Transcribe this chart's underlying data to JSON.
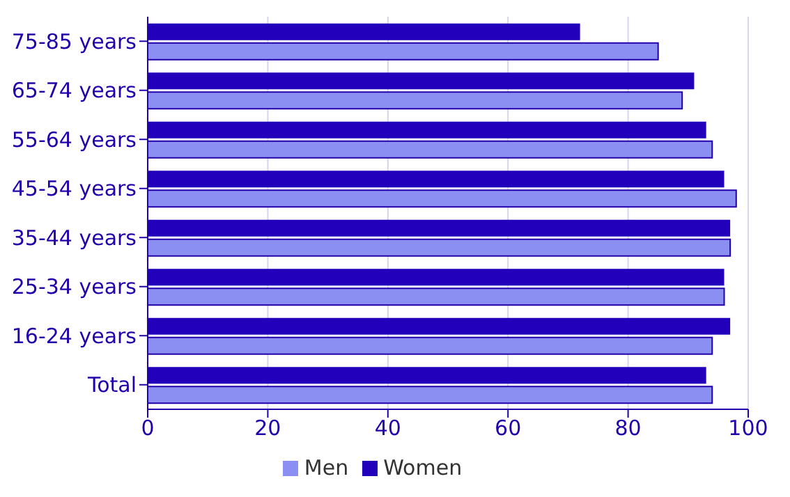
{
  "chart_data": {
    "type": "bar",
    "orientation": "horizontal",
    "categories": [
      "75-85 years",
      "65-74 years",
      "55-64 years",
      "45-54 years",
      "35-44 years",
      "25-34 years",
      "16-24 years",
      "Total"
    ],
    "series": [
      {
        "name": "Women",
        "color": "#2200bb",
        "values": [
          72,
          91,
          93,
          96,
          97,
          96,
          97,
          93
        ]
      },
      {
        "name": "Men",
        "color": "#8c8ff2",
        "values": [
          85,
          89,
          94,
          98,
          97,
          96,
          94,
          94
        ]
      }
    ],
    "xlim": [
      0,
      100
    ],
    "xticks": [
      0,
      20,
      40,
      60,
      80,
      100
    ],
    "grid": "x",
    "legend": "bottom"
  }
}
